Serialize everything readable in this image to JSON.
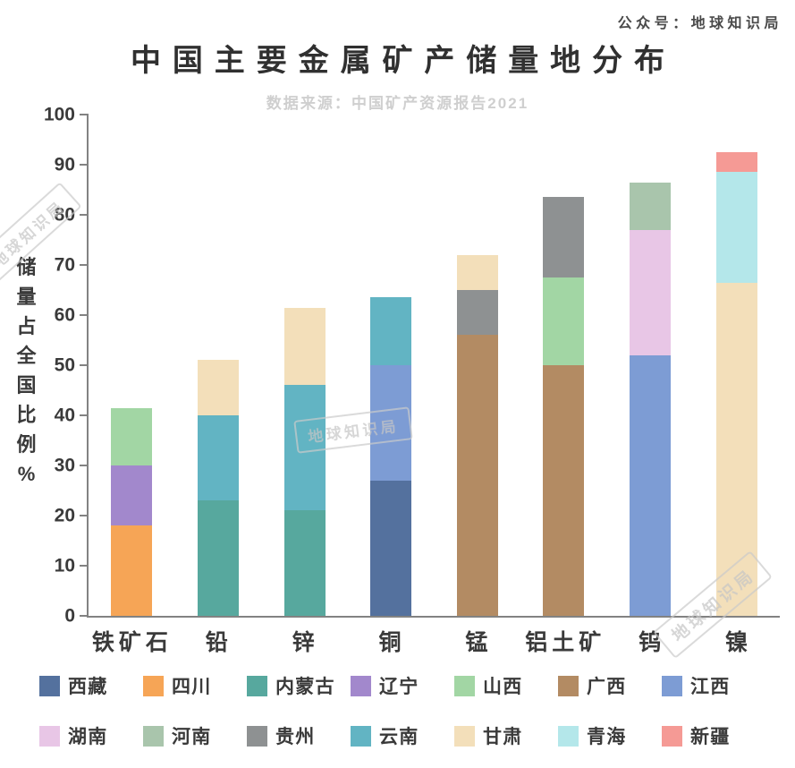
{
  "header": {
    "account_label": "公众号：地球知识局",
    "title": "中国主要金属矿产储量地分布",
    "subtitle": "数据来源：中国矿产资源报告2021"
  },
  "watermark": "地球知识局",
  "y_axis": {
    "label": "储量占全国比例",
    "unit": "%",
    "ticks": [
      0,
      10,
      20,
      30,
      40,
      50,
      60,
      70,
      80,
      90,
      100
    ]
  },
  "chart_data": {
    "type": "bar",
    "stacked": true,
    "title": "中国主要金属矿产储量地分布",
    "subtitle": "数据来源：中国矿产资源报告2021",
    "ylabel": "储量占全国比例%",
    "xlabel": "",
    "ylim": [
      0,
      100
    ],
    "grid": false,
    "legend_position": "bottom",
    "categories": [
      "铁矿石",
      "铅",
      "锌",
      "铜",
      "锰",
      "铝土矿",
      "钨",
      "镍"
    ],
    "legend": [
      {
        "name": "西藏",
        "color": "#54719e"
      },
      {
        "name": "四川",
        "color": "#f6a556"
      },
      {
        "name": "内蒙古",
        "color": "#57a89e"
      },
      {
        "name": "辽宁",
        "color": "#a288cc"
      },
      {
        "name": "山西",
        "color": "#a2d6a4"
      },
      {
        "name": "广西",
        "color": "#b38b63"
      },
      {
        "name": "江西",
        "color": "#7d9cd4"
      },
      {
        "name": "湖南",
        "color": "#e8c6e6"
      },
      {
        "name": "河南",
        "color": "#a9c5ac"
      },
      {
        "name": "贵州",
        "color": "#8e9192"
      },
      {
        "name": "云南",
        "color": "#62b4c3"
      },
      {
        "name": "甘肃",
        "color": "#f3dfba"
      },
      {
        "name": "青海",
        "color": "#b4e7ea"
      },
      {
        "name": "新疆",
        "color": "#f59a95"
      }
    ],
    "bars": [
      {
        "category": "铁矿石",
        "total": 41.5,
        "segments": [
          {
            "province": "四川",
            "value": 18
          },
          {
            "province": "辽宁",
            "value": 12
          },
          {
            "province": "山西",
            "value": 11.5
          }
        ]
      },
      {
        "category": "铅",
        "total": 51,
        "segments": [
          {
            "province": "内蒙古",
            "value": 23
          },
          {
            "province": "云南",
            "value": 17
          },
          {
            "province": "甘肃",
            "value": 11
          }
        ]
      },
      {
        "category": "锌",
        "total": 61.5,
        "segments": [
          {
            "province": "内蒙古",
            "value": 21
          },
          {
            "province": "云南",
            "value": 25
          },
          {
            "province": "甘肃",
            "value": 15.5
          }
        ]
      },
      {
        "category": "铜",
        "total": 63.5,
        "segments": [
          {
            "province": "西藏",
            "value": 27
          },
          {
            "province": "江西",
            "value": 23
          },
          {
            "province": "云南",
            "value": 13.5
          }
        ]
      },
      {
        "category": "锰",
        "total": 72,
        "segments": [
          {
            "province": "广西",
            "value": 56
          },
          {
            "province": "贵州",
            "value": 9
          },
          {
            "province": "甘肃",
            "value": 7
          }
        ]
      },
      {
        "category": "铝土矿",
        "total": 83.5,
        "segments": [
          {
            "province": "广西",
            "value": 50
          },
          {
            "province": "山西",
            "value": 17.5
          },
          {
            "province": "贵州",
            "value": 16
          }
        ]
      },
      {
        "category": "钨",
        "total": 86.5,
        "segments": [
          {
            "province": "江西",
            "value": 52
          },
          {
            "province": "湖南",
            "value": 25
          },
          {
            "province": "河南",
            "value": 9.5
          }
        ]
      },
      {
        "category": "镍",
        "total": 92.5,
        "segments": [
          {
            "province": "甘肃",
            "value": 66.5
          },
          {
            "province": "青海",
            "value": 22
          },
          {
            "province": "新疆",
            "value": 4
          }
        ]
      }
    ]
  }
}
